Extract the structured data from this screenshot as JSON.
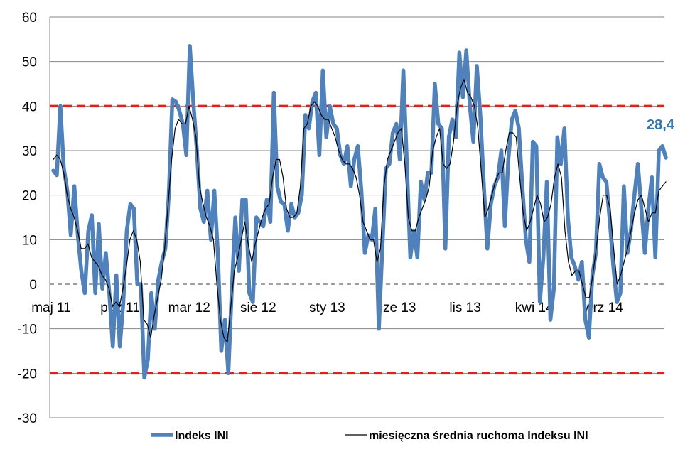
{
  "chart_data": {
    "type": "line",
    "title": "",
    "xlabel": "",
    "ylabel": "",
    "ylim": [
      -30,
      60
    ],
    "y_ticks": [
      60,
      50,
      40,
      30,
      20,
      10,
      0,
      -10,
      -20,
      -30
    ],
    "x_tick_labels": [
      "maj 11",
      "paź 11",
      "mar 12",
      "sie 12",
      "sty 13",
      "cze 13",
      "lis 13",
      "kwi 14",
      "wrz 14"
    ],
    "grid": "horizontal",
    "legend_position": "bottom",
    "reference_lines": [
      {
        "value": 40,
        "style": "dashed",
        "color": "#e02020"
      },
      {
        "value": -20,
        "style": "dashed",
        "color": "#e02020"
      },
      {
        "value": 0,
        "style": "dashed",
        "color": "#808080"
      }
    ],
    "end_label": "28,4",
    "series": [
      {
        "name": "Indeks INI",
        "color": "#4f81bd",
        "values": [
          25.5,
          24.5,
          40,
          26,
          21,
          11,
          22,
          11,
          3,
          -2,
          12,
          15.5,
          -2,
          13.5,
          -1,
          7,
          -2,
          -14,
          2,
          -14,
          -4,
          12,
          18,
          17,
          0,
          0,
          -21,
          -17,
          -2,
          -10,
          1,
          5,
          8,
          20,
          41.5,
          41,
          39,
          36,
          29,
          53.5,
          41,
          30,
          17,
          14,
          21,
          10,
          21,
          7,
          -15,
          -8,
          -20,
          -1,
          15,
          3,
          19,
          19,
          -2,
          -4,
          15,
          14,
          13,
          19,
          14,
          43,
          22,
          18.5,
          18,
          12,
          18,
          15,
          16,
          20,
          38,
          35,
          41,
          43,
          29,
          48,
          33,
          40,
          36,
          35,
          29,
          27,
          31,
          22,
          28,
          31,
          21,
          7,
          11,
          10,
          17,
          -10,
          8,
          26,
          27,
          34,
          36,
          28,
          48,
          27,
          6,
          12,
          6,
          23,
          19,
          25,
          25,
          45,
          36,
          35,
          8,
          33,
          37,
          33,
          52,
          42,
          52.5,
          40,
          32,
          49,
          38,
          22,
          8,
          18,
          22,
          24,
          30,
          13,
          28,
          37,
          39,
          35,
          22,
          10,
          5,
          32,
          31,
          -4,
          6,
          23,
          -8,
          -1,
          33,
          27,
          35,
          15,
          6,
          4,
          1,
          5,
          -8,
          -12,
          2,
          7,
          27,
          24,
          23,
          14,
          4,
          -4,
          -2,
          22,
          7,
          12,
          20,
          27,
          17,
          7,
          17,
          24,
          6,
          30,
          31,
          28.4
        ]
      },
      {
        "name": "miesięczna średnia ruchoma Indeksu INI",
        "color": "#000000",
        "values": [
          28,
          29,
          28,
          25,
          20,
          17,
          15,
          12,
          8,
          8,
          9,
          6,
          5,
          4,
          2,
          1,
          -1,
          -5,
          -4,
          -5,
          -1,
          4,
          10,
          12,
          10,
          5,
          -8,
          -9,
          -12,
          -7,
          -3,
          1,
          8,
          18,
          28,
          35,
          37,
          36,
          36,
          40,
          37,
          33,
          22,
          18,
          15,
          13,
          10,
          0,
          -8,
          -12,
          -13,
          -5,
          3,
          6,
          10,
          14,
          9,
          5,
          9,
          12,
          15,
          17,
          18,
          24,
          28,
          28,
          24,
          17,
          15,
          15,
          16,
          22,
          35,
          36,
          40,
          41,
          40,
          38,
          37,
          37,
          35,
          33,
          30,
          28,
          27,
          27,
          26,
          24,
          20,
          14,
          12,
          10,
          10,
          5,
          8,
          22,
          28,
          30,
          32,
          34,
          35,
          27,
          15,
          12,
          12,
          15,
          17,
          19,
          22,
          30,
          33,
          35,
          27,
          26,
          27,
          32,
          40,
          44,
          46,
          43,
          42,
          40,
          35,
          25,
          15,
          17,
          20,
          23,
          25,
          25,
          30,
          34,
          34,
          33,
          24,
          16,
          12,
          14,
          17,
          20,
          18,
          14,
          15,
          18,
          24,
          27,
          24,
          12,
          5,
          2,
          3,
          3,
          0,
          -3,
          -3,
          2,
          8,
          15,
          20,
          20,
          17,
          8,
          0,
          2,
          5,
          8,
          12,
          16,
          19,
          20,
          17,
          14,
          16,
          16,
          21,
          22,
          23
        ]
      }
    ]
  }
}
